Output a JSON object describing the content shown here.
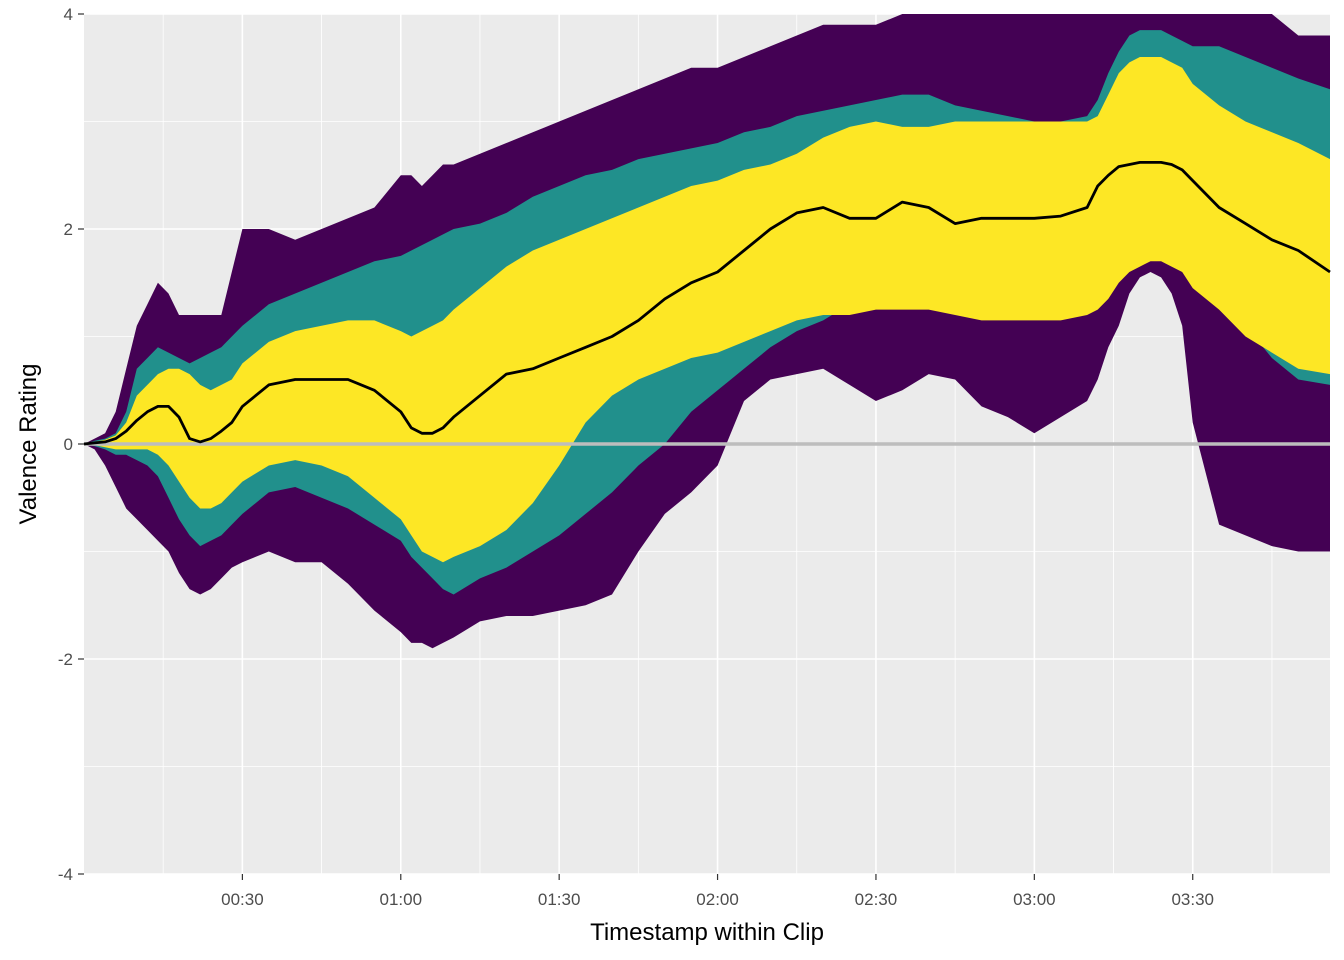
{
  "chart_data": {
    "type": "area",
    "title": "",
    "xlabel": "Timestamp within Clip",
    "ylabel": "Valence Rating",
    "xlim": [
      0,
      236
    ],
    "ylim": [
      -4,
      4
    ],
    "x_unit": "seconds",
    "x_ticks": [
      30,
      60,
      90,
      120,
      150,
      180,
      210
    ],
    "x_tick_labels": [
      "00:30",
      "01:00",
      "01:30",
      "02:00",
      "02:30",
      "03:00",
      "03:30"
    ],
    "y_ticks": [
      -4,
      -2,
      0,
      2,
      4
    ],
    "y_tick_labels": [
      "-4",
      "-2",
      "0",
      "2",
      "4"
    ],
    "grid": true,
    "reference_line": {
      "y": 0,
      "color": "#bdbdbd"
    },
    "panel_background": "#ebebeb",
    "x": [
      0,
      2,
      4,
      6,
      8,
      10,
      12,
      14,
      16,
      18,
      20,
      22,
      24,
      26,
      28,
      30,
      35,
      40,
      45,
      50,
      55,
      60,
      62,
      64,
      66,
      68,
      70,
      75,
      80,
      85,
      90,
      95,
      100,
      105,
      110,
      115,
      120,
      125,
      130,
      135,
      140,
      145,
      150,
      155,
      160,
      165,
      170,
      175,
      180,
      185,
      190,
      192,
      194,
      196,
      198,
      200,
      202,
      204,
      206,
      208,
      210,
      215,
      220,
      225,
      230,
      236
    ],
    "series": [
      {
        "name": "",
        "kind": "band",
        "color": "#440154",
        "upper": [
          0.0,
          0.05,
          0.1,
          0.3,
          0.7,
          1.1,
          1.3,
          1.5,
          1.4,
          1.2,
          1.2,
          1.2,
          1.2,
          1.2,
          1.6,
          2.0,
          2.0,
          1.9,
          2.0,
          2.1,
          2.2,
          2.5,
          2.5,
          2.4,
          2.5,
          2.6,
          2.6,
          2.7,
          2.8,
          2.9,
          3.0,
          3.1,
          3.2,
          3.3,
          3.4,
          3.5,
          3.5,
          3.6,
          3.7,
          3.8,
          3.9,
          3.9,
          3.9,
          4.0,
          4.0,
          4.0,
          4.0,
          4.0,
          4.0,
          4.0,
          4.0,
          4.0,
          4.0,
          4.0,
          4.0,
          4.0,
          4.0,
          4.0,
          4.0,
          4.0,
          4.0,
          4.0,
          4.0,
          4.0,
          3.8,
          3.8
        ],
        "lower": [
          0.0,
          -0.05,
          -0.2,
          -0.4,
          -0.6,
          -0.7,
          -0.8,
          -0.9,
          -1.0,
          -1.2,
          -1.35,
          -1.4,
          -1.35,
          -1.25,
          -1.15,
          -1.1,
          -1.0,
          -1.1,
          -1.1,
          -1.3,
          -1.55,
          -1.75,
          -1.85,
          -1.85,
          -1.9,
          -1.85,
          -1.8,
          -1.65,
          -1.6,
          -1.6,
          -1.55,
          -1.5,
          -1.4,
          -1.0,
          -0.65,
          -0.45,
          -0.2,
          0.4,
          0.6,
          0.65,
          0.7,
          0.55,
          0.4,
          0.5,
          0.65,
          0.6,
          0.35,
          0.25,
          0.1,
          0.25,
          0.4,
          0.6,
          0.9,
          1.1,
          1.4,
          1.55,
          1.6,
          1.55,
          1.4,
          1.1,
          0.2,
          -0.75,
          -0.85,
          -0.95,
          -1.0,
          -1.0
        ]
      },
      {
        "name": "",
        "kind": "band",
        "color": "#21908c",
        "upper": [
          0.0,
          0.03,
          0.05,
          0.1,
          0.3,
          0.7,
          0.8,
          0.9,
          0.85,
          0.8,
          0.75,
          0.8,
          0.85,
          0.9,
          1.0,
          1.1,
          1.3,
          1.4,
          1.5,
          1.6,
          1.7,
          1.75,
          1.8,
          1.85,
          1.9,
          1.95,
          2.0,
          2.05,
          2.15,
          2.3,
          2.4,
          2.5,
          2.55,
          2.65,
          2.7,
          2.75,
          2.8,
          2.9,
          2.95,
          3.05,
          3.1,
          3.15,
          3.2,
          3.25,
          3.25,
          3.15,
          3.1,
          3.05,
          3.0,
          3.0,
          3.05,
          3.2,
          3.45,
          3.65,
          3.8,
          3.85,
          3.85,
          3.85,
          3.8,
          3.75,
          3.7,
          3.7,
          3.6,
          3.5,
          3.4,
          3.3
        ],
        "lower": [
          0.0,
          -0.02,
          -0.05,
          -0.1,
          -0.1,
          -0.15,
          -0.2,
          -0.3,
          -0.5,
          -0.7,
          -0.85,
          -0.95,
          -0.9,
          -0.85,
          -0.75,
          -0.65,
          -0.45,
          -0.4,
          -0.5,
          -0.6,
          -0.75,
          -0.9,
          -1.05,
          -1.15,
          -1.25,
          -1.35,
          -1.4,
          -1.25,
          -1.15,
          -1.0,
          -0.85,
          -0.65,
          -0.45,
          -0.2,
          0.0,
          0.3,
          0.5,
          0.7,
          0.9,
          1.05,
          1.15,
          1.3,
          1.45,
          1.45,
          1.45,
          1.4,
          1.3,
          1.25,
          1.25,
          1.2,
          1.3,
          1.35,
          1.4,
          1.55,
          1.7,
          1.85,
          1.95,
          2.0,
          1.95,
          1.85,
          1.75,
          1.5,
          1.1,
          0.8,
          0.6,
          0.55
        ]
      },
      {
        "name": "",
        "kind": "band",
        "color": "#fde725",
        "upper": [
          0.0,
          0.02,
          0.04,
          0.08,
          0.2,
          0.45,
          0.55,
          0.65,
          0.7,
          0.7,
          0.65,
          0.55,
          0.5,
          0.55,
          0.6,
          0.75,
          0.95,
          1.05,
          1.1,
          1.15,
          1.15,
          1.05,
          1.0,
          1.05,
          1.1,
          1.15,
          1.25,
          1.45,
          1.65,
          1.8,
          1.9,
          2.0,
          2.1,
          2.2,
          2.3,
          2.4,
          2.45,
          2.55,
          2.6,
          2.7,
          2.85,
          2.95,
          3.0,
          2.95,
          2.95,
          3.0,
          3.0,
          3.0,
          3.0,
          3.0,
          3.0,
          3.05,
          3.25,
          3.45,
          3.55,
          3.6,
          3.6,
          3.6,
          3.55,
          3.5,
          3.35,
          3.15,
          3.0,
          2.9,
          2.8,
          2.65
        ],
        "lower": [
          0.0,
          -0.01,
          -0.03,
          -0.05,
          -0.05,
          -0.05,
          -0.05,
          -0.1,
          -0.2,
          -0.35,
          -0.5,
          -0.6,
          -0.6,
          -0.55,
          -0.45,
          -0.35,
          -0.2,
          -0.15,
          -0.2,
          -0.3,
          -0.5,
          -0.7,
          -0.85,
          -1.0,
          -1.05,
          -1.1,
          -1.05,
          -0.95,
          -0.8,
          -0.55,
          -0.2,
          0.2,
          0.45,
          0.6,
          0.7,
          0.8,
          0.85,
          0.95,
          1.05,
          1.15,
          1.2,
          1.2,
          1.25,
          1.25,
          1.25,
          1.2,
          1.15,
          1.15,
          1.15,
          1.15,
          1.2,
          1.25,
          1.35,
          1.5,
          1.6,
          1.65,
          1.7,
          1.7,
          1.65,
          1.6,
          1.45,
          1.25,
          1.0,
          0.85,
          0.7,
          0.65
        ]
      },
      {
        "name": "",
        "kind": "line",
        "color": "#000000",
        "values": [
          0.0,
          0.01,
          0.02,
          0.05,
          0.12,
          0.22,
          0.3,
          0.35,
          0.35,
          0.25,
          0.05,
          0.02,
          0.05,
          0.12,
          0.2,
          0.35,
          0.55,
          0.6,
          0.6,
          0.6,
          0.5,
          0.3,
          0.15,
          0.1,
          0.1,
          0.15,
          0.25,
          0.45,
          0.65,
          0.7,
          0.8,
          0.9,
          1.0,
          1.15,
          1.35,
          1.5,
          1.6,
          1.8,
          2.0,
          2.15,
          2.2,
          2.1,
          2.1,
          2.25,
          2.2,
          2.05,
          2.1,
          2.1,
          2.1,
          2.12,
          2.2,
          2.4,
          2.5,
          2.58,
          2.6,
          2.62,
          2.62,
          2.62,
          2.6,
          2.55,
          2.45,
          2.2,
          2.05,
          1.9,
          1.8,
          1.6
        ]
      }
    ]
  }
}
